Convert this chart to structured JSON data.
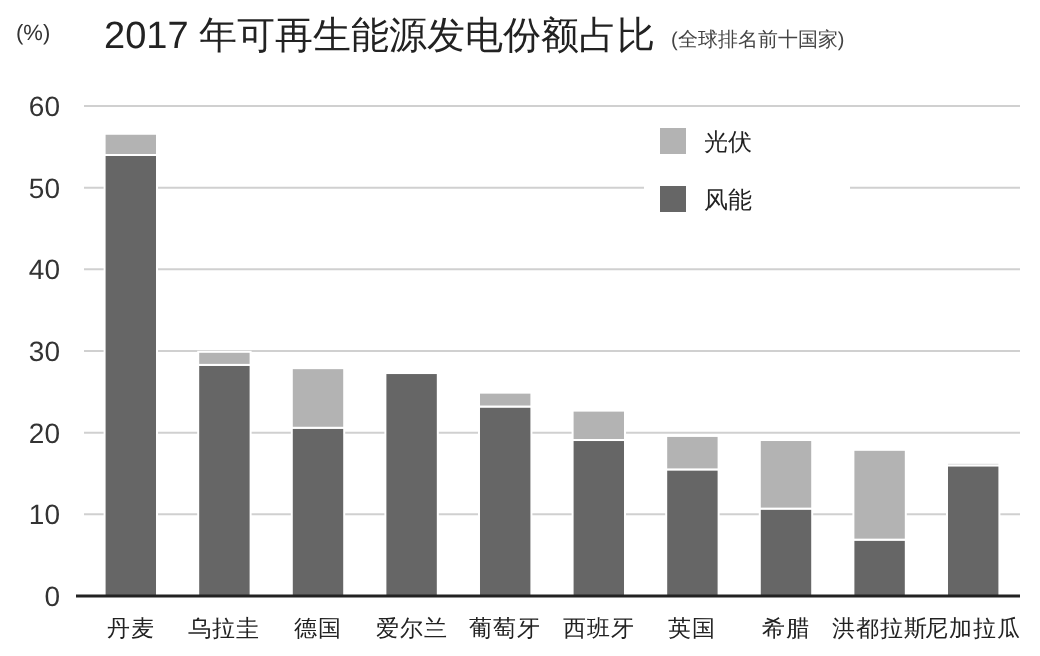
{
  "chart_data": {
    "type": "bar",
    "title": "2017 年可再生能源发电份额占比",
    "subtitle": "(全球排名前十国家)",
    "ylabel": "(%)",
    "categories": [
      "丹麦",
      "乌拉圭",
      "德国",
      "爱尔兰",
      "葡萄牙",
      "西班牙",
      "英国",
      "希腊",
      "洪都拉斯",
      "尼加拉瓜"
    ],
    "series": [
      {
        "name": "风能",
        "color": "#666666",
        "values": [
          54.0,
          28.3,
          20.6,
          27.3,
          23.2,
          19.1,
          15.5,
          10.7,
          6.9,
          16.0
        ]
      },
      {
        "name": "光伏",
        "color": "#b3b3b3",
        "values": [
          2.6,
          1.6,
          7.3,
          0,
          1.7,
          3.6,
          4.1,
          8.4,
          11.0,
          0.3
        ]
      }
    ],
    "stacked": true,
    "ylim": [
      0,
      60
    ],
    "yticks": [
      0,
      10,
      20,
      30,
      40,
      50,
      60
    ],
    "grid": "y",
    "legend": "top right"
  }
}
